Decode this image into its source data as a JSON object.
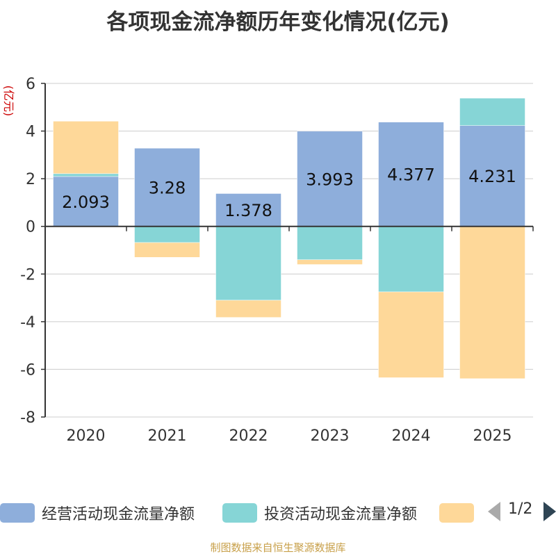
{
  "chart_data": {
    "type": "bar",
    "stacked": true,
    "title": "各项现金流净额历年变化情况(亿元)",
    "ylabel": "(亿元)",
    "xlabel": "",
    "ylim": [
      -8,
      6
    ],
    "yticks": [
      6,
      4,
      2,
      0,
      -2,
      -4,
      -6,
      -8
    ],
    "grid": true,
    "categories": [
      "2020",
      "2021",
      "2022",
      "2023",
      "2024",
      "2025"
    ],
    "series": [
      {
        "name": "经营活动现金流量净额",
        "color": "#8eaedb",
        "values": [
          2.093,
          3.28,
          1.378,
          3.993,
          4.377,
          4.231
        ],
        "labels": [
          "2.093",
          "3.28",
          "1.378",
          "3.993",
          "4.377",
          "4.231"
        ]
      },
      {
        "name": "投资活动现金流量净额",
        "color": "#86d5d6",
        "values": [
          0.12,
          -0.68,
          -3.1,
          -1.4,
          -2.75,
          1.15
        ]
      },
      {
        "name": "",
        "color": "#fed899",
        "values": [
          2.2,
          -0.62,
          -0.72,
          -0.2,
          -3.6,
          -6.39
        ]
      }
    ],
    "legend": {
      "position": "bottom",
      "page": "1/2"
    },
    "source": "制图数据来自恒生聚源数据库"
  }
}
